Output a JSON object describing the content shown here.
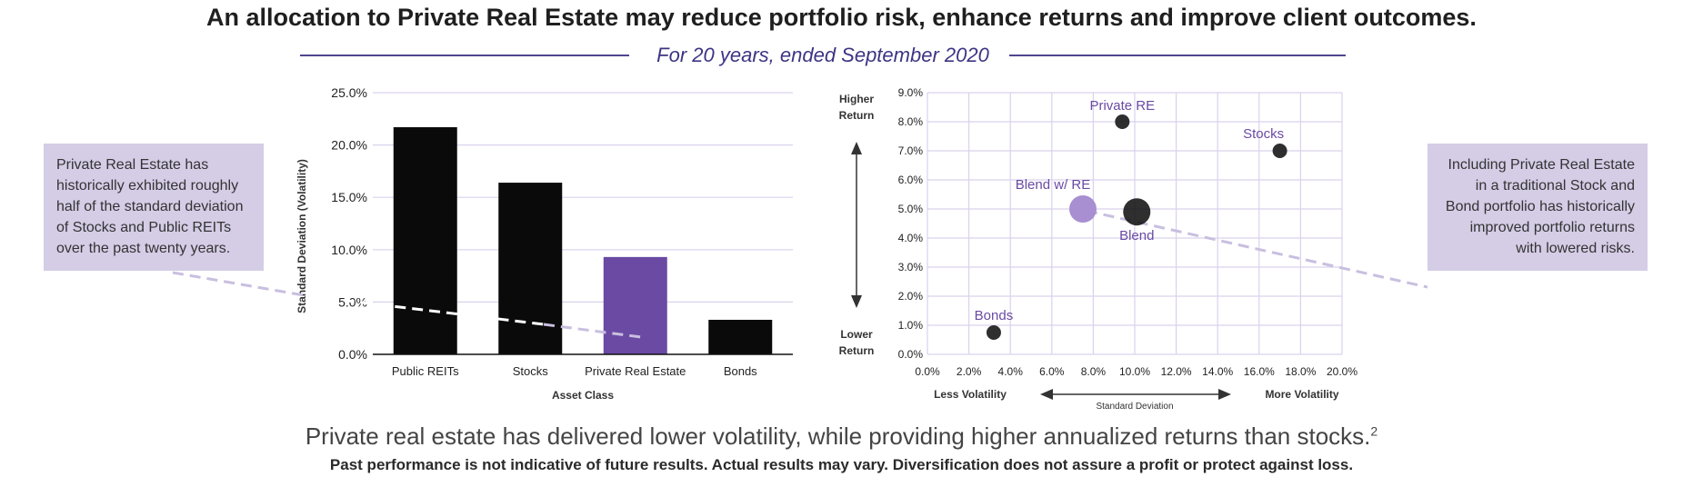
{
  "headline": "An allocation to Private Real Estate may reduce portfolio risk, enhance returns and improve client outcomes.",
  "subtitle": "For 20 years, ended September 2020",
  "notes": {
    "left": "Private Real Estate has historically exhibited roughly half of the standard deviation of Stocks and Public REITs over the past twenty years.",
    "right": "Including Private Real Estate in a traditional Stock and Bond portfolio has historically improved portfolio returns with lowered risks."
  },
  "footer": {
    "main": "Private real estate has delivered lower volatility, while providing higher annualized returns than stocks.",
    "footnote_mark": "2",
    "disclaimer": "Past performance is not indicative of future results. Actual results may vary. Diversification does not assure a profit or protect against loss."
  },
  "colors": {
    "dark": "#0a0a0a",
    "accent": "#6a4aa3",
    "grid": "#d9d2ec",
    "light_accent": "#a88fd1",
    "note_bg": "#d5cce6"
  },
  "chart_data": [
    {
      "type": "bar",
      "xlabel": "Asset Class",
      "ylabel": "Standard Deviation (Volatility)",
      "categories": [
        "Public REITs",
        "Stocks",
        "Private Real Estate",
        "Bonds"
      ],
      "values": [
        21.7,
        16.4,
        9.3,
        3.3
      ],
      "highlight": "Private Real Estate",
      "ylim": [
        0,
        25
      ],
      "yticks": [
        "0.0%",
        "5.0%",
        "10.0%",
        "15.0%",
        "20.0%",
        "25.0%"
      ],
      "grid": true
    },
    {
      "type": "scatter",
      "xlabel": "Standard Deviation",
      "x_left_label": "Less Volatility",
      "x_right_label": "More Volatility",
      "y_top_label": "Higher Return",
      "y_bottom_label": "Lower Return",
      "xlim": [
        0,
        20
      ],
      "ylim": [
        0,
        9
      ],
      "xticks": [
        "0.0%",
        "2.0%",
        "4.0%",
        "6.0%",
        "8.0%",
        "10.0%",
        "12.0%",
        "14.0%",
        "16.0%",
        "18.0%",
        "20.0%"
      ],
      "yticks": [
        "0.0%",
        "1.0%",
        "2.0%",
        "3.0%",
        "4.0%",
        "5.0%",
        "6.0%",
        "7.0%",
        "8.0%",
        "9.0%"
      ],
      "grid": true,
      "points": [
        {
          "label": "Private RE",
          "x": 9.4,
          "y": 8.0,
          "size": "small",
          "color": "dark",
          "label_color": "accent"
        },
        {
          "label": "Stocks",
          "x": 17.0,
          "y": 7.0,
          "size": "small",
          "color": "dark",
          "label_color": "accent"
        },
        {
          "label": "Blend w/ RE",
          "x": 7.5,
          "y": 5.0,
          "size": "large",
          "color": "light_accent",
          "label_color": "accent"
        },
        {
          "label": "Blend",
          "x": 10.1,
          "y": 4.9,
          "size": "large",
          "color": "dark",
          "label_color": "accent"
        },
        {
          "label": "Bonds",
          "x": 3.2,
          "y": 0.75,
          "size": "small",
          "color": "dark",
          "label_color": "accent"
        }
      ]
    }
  ]
}
